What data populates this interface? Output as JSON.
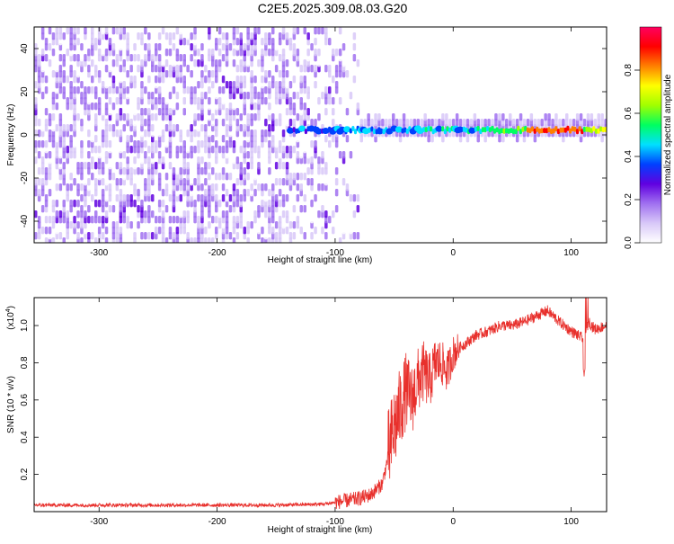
{
  "title": "C2E5.2025.309.08.03.G20",
  "chart_data": [
    {
      "type": "heatmap",
      "xlabel": "Height of straight line (km)",
      "ylabel": "Frequency (Hz)",
      "xlim": [
        -355,
        130
      ],
      "ylim": [
        -50,
        50
      ],
      "xticks": [
        -300,
        -200,
        -100,
        0,
        100
      ],
      "xtick_labels": [
        "-300",
        "-200",
        "-100",
        "0",
        "100"
      ],
      "yticks": [
        -40,
        -20,
        0,
        20,
        40
      ],
      "ytick_labels": [
        "-40",
        "-20",
        "0",
        "20",
        "40"
      ],
      "ridge": {
        "frequency_hz": 2,
        "x_start": -140,
        "x_end": 130
      },
      "colorbar": {
        "label": "Normalized spectral amplitude",
        "range": [
          0.0,
          1.0
        ],
        "ticks": [
          0.0,
          0.2,
          0.4,
          0.6,
          0.8
        ],
        "tick_labels": [
          "0.0",
          "0.2",
          "0.4",
          "0.6",
          "0.8"
        ],
        "colors": [
          "#ffffff",
          "#d8c8f8",
          "#a070f0",
          "#6000e0",
          "#0040ff",
          "#00e0ff",
          "#00ff60",
          "#a0ff00",
          "#ffff00",
          "#ff8000",
          "#ff0000",
          "#ff0060"
        ]
      }
    },
    {
      "type": "line",
      "color": "#e8302c",
      "xlabel": "Height of straight line (km)",
      "ylabel": "SNR (10 * v/v)",
      "exponent_label": "(x10",
      "exponent": "4",
      "xlim": [
        -355,
        130
      ],
      "ylim": [
        0,
        1.15
      ],
      "xticks": [
        -300,
        -200,
        -100,
        0,
        100
      ],
      "xtick_labels": [
        "-300",
        "-200",
        "-100",
        "0",
        "100"
      ],
      "yticks": [
        0.2,
        0.4,
        0.6,
        0.8,
        1.0
      ],
      "ytick_labels": [
        "0.2",
        "0.4",
        "0.6",
        "0.8",
        "1.0"
      ],
      "x": [
        -355,
        -300,
        -250,
        -200,
        -150,
        -110,
        -90,
        -80,
        -70,
        -60,
        -55,
        -50,
        -45,
        -40,
        -35,
        -30,
        -25,
        -20,
        -15,
        -10,
        -5,
        0,
        5,
        10,
        20,
        30,
        40,
        50,
        60,
        70,
        80,
        90,
        100,
        110,
        115,
        120,
        130
      ],
      "y": [
        0.035,
        0.035,
        0.035,
        0.035,
        0.035,
        0.04,
        0.06,
        0.07,
        0.09,
        0.15,
        0.3,
        0.45,
        0.55,
        0.65,
        0.6,
        0.7,
        0.75,
        0.7,
        0.8,
        0.8,
        0.75,
        0.85,
        0.88,
        0.9,
        0.95,
        0.97,
        1.0,
        1.0,
        1.02,
        1.05,
        1.08,
        1.02,
        0.97,
        0.93,
        1.02,
        0.98,
        1.0
      ]
    }
  ]
}
